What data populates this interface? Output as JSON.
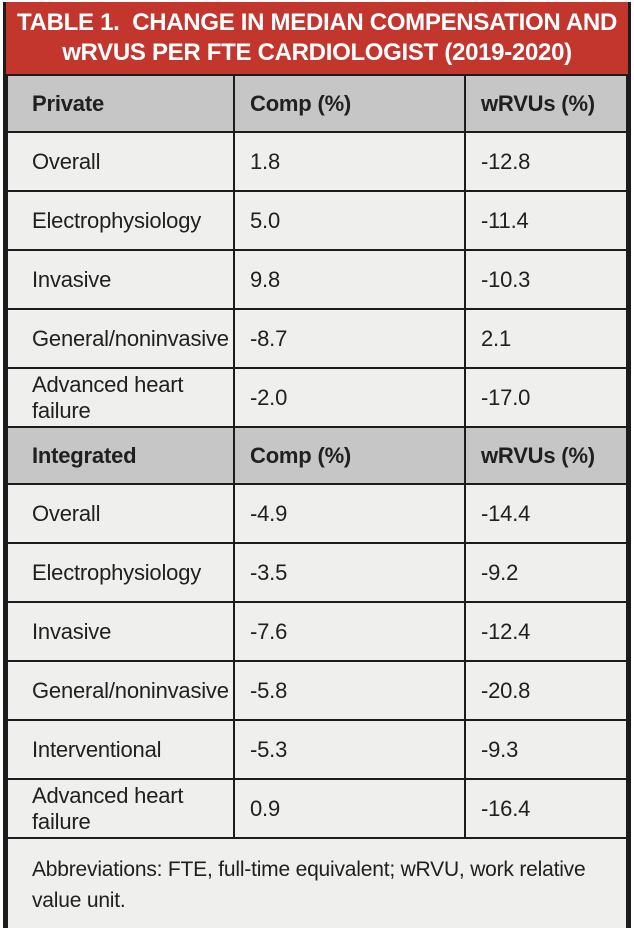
{
  "title": {
    "line1": "TABLE 1.  CHANGE IN MEDIAN COMPENSATION AND",
    "line2": "wRVUS PER FTE CARDIOLOGIST (2019-2020)"
  },
  "sections": [
    {
      "header": "Private",
      "col_comp": "Comp (%)",
      "col_wrvus": "wRVUs (%)",
      "rows": [
        {
          "label": "Overall",
          "comp": "1.8",
          "wrvus": "-12.8"
        },
        {
          "label": "Electrophysiology",
          "comp": "5.0",
          "wrvus": "-11.4"
        },
        {
          "label": "Invasive",
          "comp": "9.8",
          "wrvus": "-10.3"
        },
        {
          "label": "General/noninvasive",
          "comp": "-8.7",
          "wrvus": "2.1"
        },
        {
          "label": "Advanced heart failure",
          "comp": "-2.0",
          "wrvus": "-17.0"
        }
      ]
    },
    {
      "header": "Integrated",
      "col_comp": "Comp (%)",
      "col_wrvus": "wRVUs (%)",
      "rows": [
        {
          "label": "Overall",
          "comp": "-4.9",
          "wrvus": "-14.4"
        },
        {
          "label": "Electrophysiology",
          "comp": "-3.5",
          "wrvus": "-9.2"
        },
        {
          "label": "Invasive",
          "comp": "-7.6",
          "wrvus": "-12.4"
        },
        {
          "label": "General/noninvasive",
          "comp": "-5.8",
          "wrvus": "-20.8"
        },
        {
          "label": "Interventional",
          "comp": "-5.3",
          "wrvus": "-9.3"
        },
        {
          "label": "Advanced heart failure",
          "comp": "0.9",
          "wrvus": "-16.4"
        }
      ]
    }
  ],
  "footnote": "Abbreviations: FTE, full-time equivalent; wRVU, work relative value unit.",
  "colors": {
    "header_red": "#c2362e",
    "section_gray": "#c6c6c6",
    "row_bg": "#efefee",
    "border": "#1c1c1c"
  }
}
